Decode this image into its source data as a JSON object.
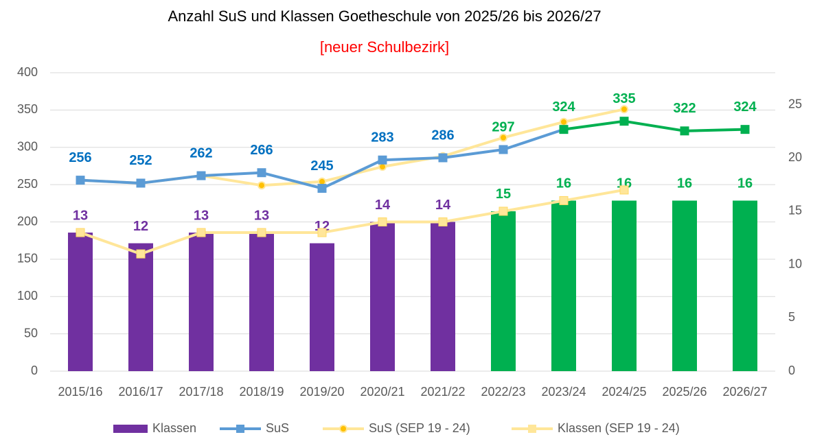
{
  "chart_data": {
    "type": "combo",
    "title": "Anzahl SuS und Klassen Goetheschule von 2025/26 bis 2026/27",
    "subtitle": "[neuer Schulbezirk]",
    "categories": [
      "2015/16",
      "2016/17",
      "2017/18",
      "2018/19",
      "2019/20",
      "2020/21",
      "2021/22",
      "2022/23",
      "2023/24",
      "2024/25",
      "2025/26",
      "2026/27"
    ],
    "ylim": [
      0,
      400
    ],
    "yticks": [
      0,
      50,
      100,
      150,
      200,
      250,
      300,
      350,
      400
    ],
    "y2lim": [
      0,
      28
    ],
    "y2ticks": [
      0,
      5,
      10,
      15,
      20,
      25
    ],
    "grid": true,
    "legend": "bottom",
    "series": [
      {
        "name": "Klassen",
        "type": "bar",
        "axis": "y2",
        "color": "#7030a0",
        "point_colors": [
          "#7030a0",
          "#7030a0",
          "#7030a0",
          "#7030a0",
          "#7030a0",
          "#7030a0",
          "#7030a0",
          "#00b050",
          "#00b050",
          "#00b050",
          "#00b050",
          "#00b050"
        ],
        "values": [
          13,
          12,
          13,
          13,
          12,
          14,
          14,
          15,
          16,
          16,
          16,
          16
        ]
      },
      {
        "name": "SuS",
        "type": "line",
        "marker": "square",
        "color": "#5b9bd5",
        "point_colors": [
          "#5b9bd5",
          "#5b9bd5",
          "#5b9bd5",
          "#5b9bd5",
          "#5b9bd5",
          "#5b9bd5",
          "#5b9bd5",
          "#5b9bd5",
          "#00b050",
          "#00b050",
          "#00b050",
          "#00b050"
        ],
        "label_colors": [
          "#0070c0",
          "#0070c0",
          "#0070c0",
          "#0070c0",
          "#0070c0",
          "#0070c0",
          "#0070c0",
          "#00b050",
          "#00b050",
          "#00b050",
          "#00b050",
          "#00b050"
        ],
        "values": [
          256,
          252,
          262,
          266,
          245,
          283,
          286,
          297,
          324,
          335,
          322,
          324
        ]
      },
      {
        "name": "SuS (SEP 19 - 24)",
        "type": "line",
        "marker": "circle",
        "color": "#ffe699",
        "values": [
          256,
          252,
          262,
          249,
          254,
          274,
          288,
          313,
          334,
          351,
          null,
          null
        ]
      },
      {
        "name": "Klassen (SEP 19 - 24)",
        "type": "line",
        "marker": "square",
        "axis": "y2",
        "color": "#ffe699",
        "values": [
          13,
          11,
          13,
          13,
          13,
          14,
          14,
          15,
          16,
          17,
          null,
          null
        ]
      }
    ]
  }
}
